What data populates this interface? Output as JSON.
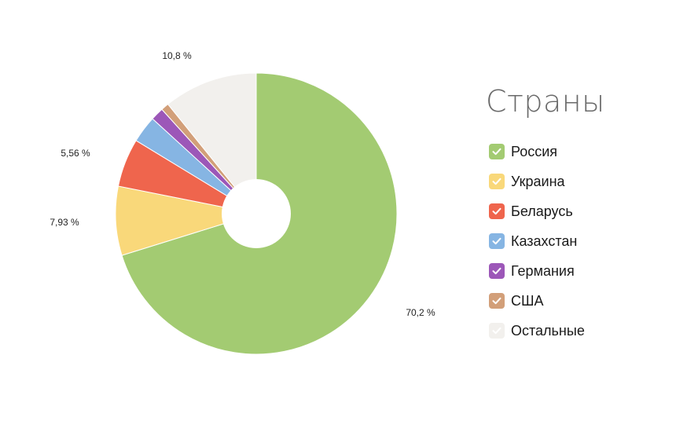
{
  "chart_data": {
    "type": "pie",
    "title": "Страны",
    "categories": [
      "Россия",
      "Украина",
      "Беларусь",
      "Казахстан",
      "Германия",
      "США",
      "Остальные"
    ],
    "values": [
      70.2,
      7.93,
      5.56,
      3.1,
      1.5,
      0.9,
      10.8
    ],
    "colors": [
      "#a3cb72",
      "#f9d87a",
      "#ef654d",
      "#86b5e3",
      "#9c57b8",
      "#d29f79",
      "#f2f0ed"
    ],
    "data_labels": [
      "70,2 %",
      "7,93 %",
      "5,56 %",
      "",
      "",
      "",
      "10,8 %"
    ],
    "legend": "right",
    "donut": true
  }
}
